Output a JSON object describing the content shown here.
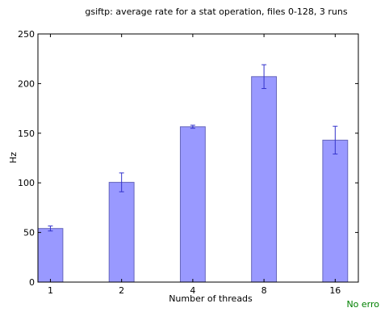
{
  "chart_data": {
    "type": "bar",
    "title": "gsiftp: average rate for a stat operation, files 0-128, 3 runs",
    "xlabel": "Number of threads",
    "ylabel": "Hz",
    "categories": [
      "1",
      "2",
      "4",
      "8",
      "16"
    ],
    "values": [
      54,
      100.5,
      156.5,
      207,
      143
    ],
    "errors": [
      2.5,
      9.5,
      1.5,
      12,
      14
    ],
    "ylim": [
      0,
      250
    ],
    "yticks": [
      "0",
      "50",
      "100",
      "150",
      "200",
      "250"
    ],
    "grid": false,
    "bar_color": "#9999ff",
    "bar_edge_color": "#6666bb",
    "error_color": "#3333cc"
  },
  "status": {
    "text": "No erro",
    "color": "#008000"
  }
}
